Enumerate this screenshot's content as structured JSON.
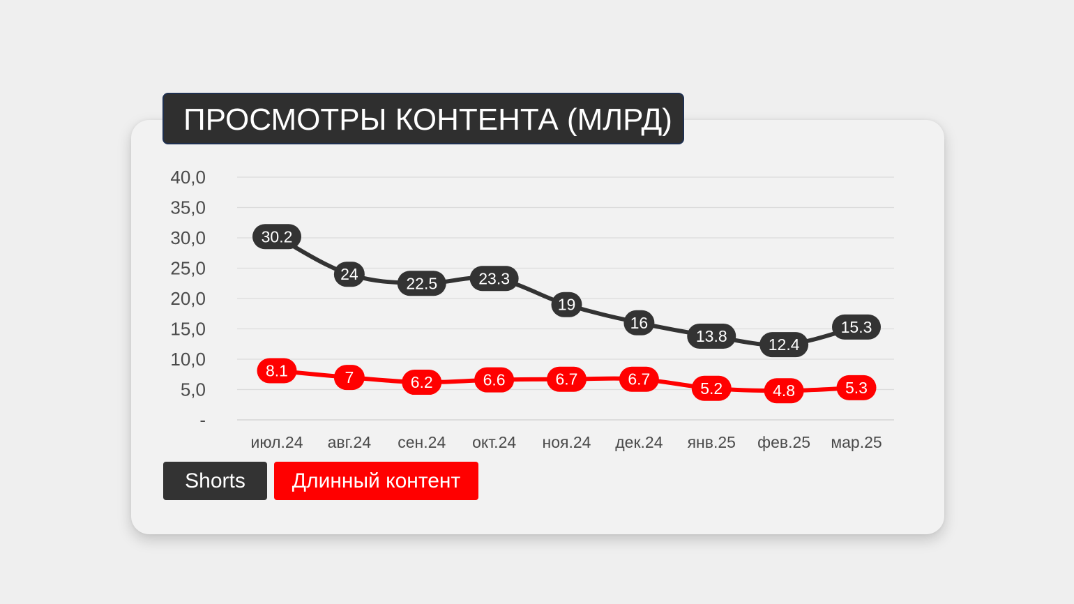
{
  "chart_data": {
    "type": "line",
    "title": "ПРОСМОТРЫ КОНТЕНТА (МЛРД)",
    "categories": [
      "июл.24",
      "авг.24",
      "сен.24",
      "окт.24",
      "ноя.24",
      "дек.24",
      "янв.25",
      "фев.25",
      "мар.25"
    ],
    "series": [
      {
        "name": "Shorts",
        "color": "#333333",
        "values": [
          30.2,
          24,
          22.5,
          23.3,
          19,
          16,
          13.8,
          12.4,
          15.3
        ],
        "labels": [
          "30.2",
          "24",
          "22.5",
          "23.3",
          "19",
          "16",
          "13.8",
          "12.4",
          "15.3"
        ]
      },
      {
        "name": "Длинный контент",
        "color": "#ff0000",
        "values": [
          8.1,
          7,
          6.2,
          6.6,
          6.7,
          6.7,
          5.2,
          4.8,
          5.3
        ],
        "labels": [
          "8.1",
          "7",
          "6.2",
          "6.6",
          "6.7",
          "6.7",
          "5.2",
          "4.8",
          "5.3"
        ]
      }
    ],
    "ylim": [
      0,
      40
    ],
    "yticks": [
      0,
      5,
      10,
      15,
      20,
      25,
      30,
      35,
      40
    ],
    "ytick_labels": [
      "-",
      "5,0",
      "10,0",
      "15,0",
      "20,0",
      "25,0",
      "30,0",
      "35,0",
      "40,0"
    ],
    "grid": true,
    "legend": "bottom-left"
  }
}
